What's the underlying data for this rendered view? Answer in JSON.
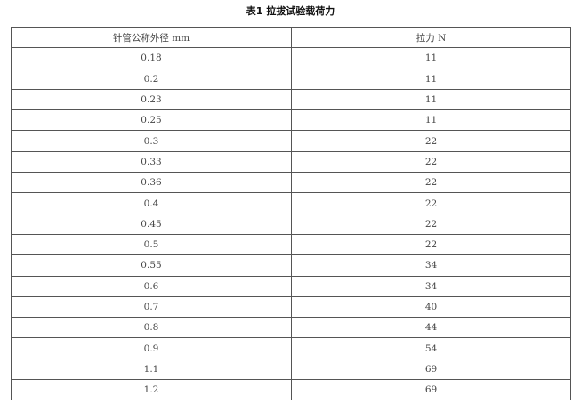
{
  "title": "表1 拉拔试验载荷力",
  "table": {
    "headers": [
      "针管公称外径 mm",
      "拉力 N"
    ],
    "rows": [
      [
        "0.18",
        "11"
      ],
      [
        "0.2",
        "11"
      ],
      [
        "0.23",
        "11"
      ],
      [
        "0.25",
        "11"
      ],
      [
        "0.3",
        "22"
      ],
      [
        "0.33",
        "22"
      ],
      [
        "0.36",
        "22"
      ],
      [
        "0.4",
        "22"
      ],
      [
        "0.45",
        "22"
      ],
      [
        "0.5",
        "22"
      ],
      [
        "0.55",
        "34"
      ],
      [
        "0.6",
        "34"
      ],
      [
        "0.7",
        "40"
      ],
      [
        "0.8",
        "44"
      ],
      [
        "0.9",
        "54"
      ],
      [
        "1.1",
        "69"
      ],
      [
        "1.2",
        "69"
      ]
    ]
  }
}
